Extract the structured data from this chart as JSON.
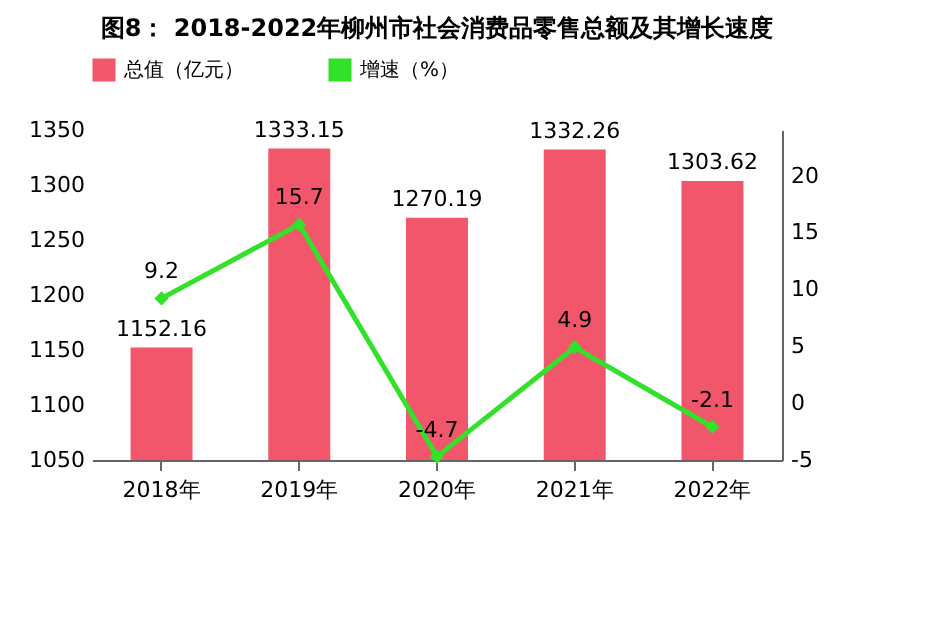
{
  "chart_data": {
    "type": "bar",
    "title": "图8：  2018-2022年柳州市社会消费品零售总额及其增长速度",
    "categories": [
      "2018年",
      "2019年",
      "2020年",
      "2021年",
      "2022年"
    ],
    "series": [
      {
        "name": "总值（亿元）",
        "type": "bar",
        "color": "#f2566b",
        "values": [
          1152.16,
          1333.15,
          1270.19,
          1332.26,
          1303.62
        ]
      },
      {
        "name": "增速（%）",
        "type": "line",
        "axis": "y2",
        "color": "#33e02a",
        "values": [
          9.2,
          15.7,
          -4.7,
          4.9,
          -2.1
        ]
      }
    ],
    "ylim": [
      1050,
      1350
    ],
    "yticks": [
      1050,
      1100,
      1150,
      1200,
      1250,
      1300,
      1350
    ],
    "y2lim": [
      -5,
      24
    ],
    "y2ticks": [
      -5,
      0,
      5,
      10,
      15,
      20
    ],
    "data_labels": true,
    "marker": "diamond",
    "line_style": "solid",
    "legend": "top",
    "grid": false
  }
}
